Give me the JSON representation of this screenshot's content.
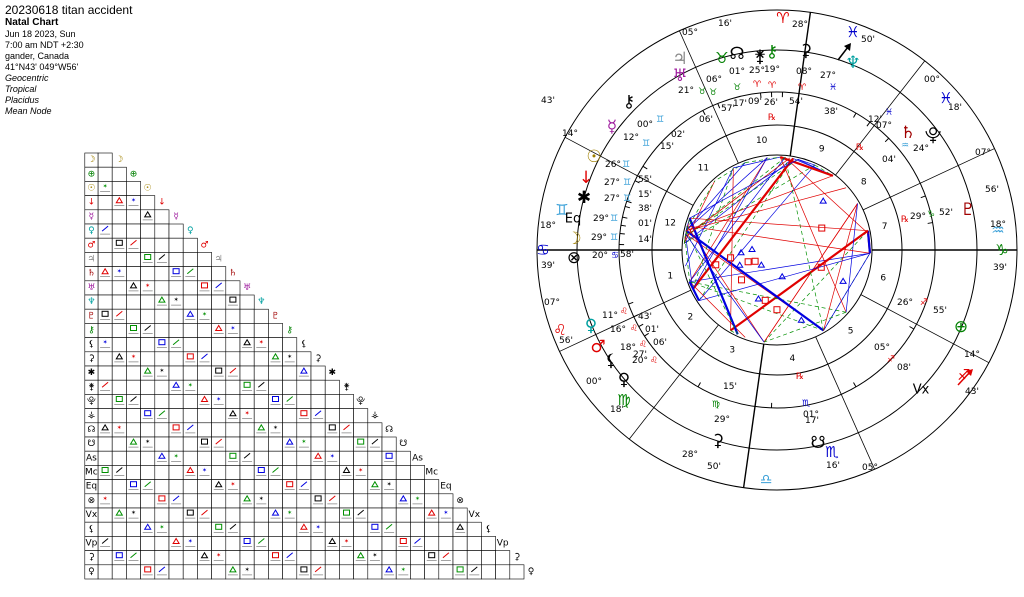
{
  "header": {
    "title": "20230618 titan accident",
    "chart_type": "Natal Chart",
    "lines": [
      "Jun 18 2023, Sun",
      "7:00 am  NDT +2:30",
      "gander, Canada",
      "41°N43' 049°W56'"
    ],
    "settings": [
      "Geocentric",
      "Tropical",
      "Placidus",
      "Mean Node"
    ]
  },
  "colors": {
    "fire": "#e00000",
    "earth": "#008000",
    "air": "#3aa0d8",
    "water": "#0000cc",
    "aspect_red": "#e00000",
    "aspect_blue": "#0000e0",
    "aspect_green": "#009000"
  },
  "signs": [
    {
      "glyph": "♋",
      "color": "#0000cc"
    },
    {
      "glyph": "♊",
      "color": "#3aa0d8"
    },
    {
      "glyph": "♉",
      "color": "#008000"
    },
    {
      "glyph": "♈",
      "color": "#e00000"
    },
    {
      "glyph": "♓",
      "color": "#0000cc"
    },
    {
      "glyph": "♒",
      "color": "#3aa0d8"
    },
    {
      "glyph": "♑",
      "color": "#008000"
    },
    {
      "glyph": "♐",
      "color": "#e00000"
    },
    {
      "glyph": "♏",
      "color": "#0000cc"
    },
    {
      "glyph": "♎",
      "color": "#3aa0d8"
    },
    {
      "glyph": "♍",
      "color": "#008000"
    },
    {
      "glyph": "♌",
      "color": "#e00000"
    }
  ],
  "cusp_labels": [
    {
      "deg": "18°",
      "min": "39'",
      "color": "#0000cc"
    },
    {
      "deg": "14°",
      "min": "43'",
      "color": "#3aa0d8"
    },
    {
      "deg": "05°",
      "min": "16'",
      "color": "#008000"
    },
    {
      "deg": "28°",
      "min": "50'",
      "color": "#0000cc"
    },
    {
      "deg": "00°",
      "min": "18'",
      "color": "#0000cc"
    },
    {
      "deg": "07°",
      "min": "56'",
      "color": "#3aa0d8"
    },
    {
      "deg": "18°",
      "min": "39'",
      "color": "#008000"
    },
    {
      "deg": "14°",
      "min": "43'",
      "color": "#e00000"
    },
    {
      "deg": "05°",
      "min": "16'",
      "color": "#0000cc"
    },
    {
      "deg": "28°",
      "min": "50'",
      "color": "#008000"
    },
    {
      "deg": "00°",
      "min": "18'",
      "color": "#008000"
    },
    {
      "deg": "07°",
      "min": "56'",
      "color": "#e00000"
    }
  ],
  "house_numbers": [
    "1",
    "2",
    "3",
    "4",
    "5",
    "6",
    "7",
    "8",
    "9",
    "10",
    "11",
    "12"
  ],
  "planets": [
    {
      "name": "sun",
      "glyph": "☉",
      "color": "#a08000",
      "deg": "26°",
      "sign": "♊",
      "min": "55'"
    },
    {
      "name": "mars-node",
      "glyph": "↓",
      "color": "#e00000",
      "deg": "27°",
      "sign": "♊",
      "min": "15'"
    },
    {
      "name": "asteroid",
      "glyph": "✱",
      "color": "#000000",
      "deg": "27°",
      "sign": "♊",
      "min": "38'"
    },
    {
      "name": "equal-asc",
      "glyph": "Eq",
      "color": "#000000",
      "deg": "29°",
      "sign": "♊",
      "min": "01'"
    },
    {
      "name": "moon",
      "glyph": "☽",
      "color": "#a08000",
      "deg": "29°",
      "sign": "♊",
      "min": "14'"
    },
    {
      "name": "part-fortune-south",
      "glyph": "⊗",
      "color": "#000000",
      "deg": "20°",
      "sign": "♋",
      "min": "58'"
    },
    {
      "name": "venus",
      "glyph": "♀",
      "color": "#00a0a0",
      "deg": "11°",
      "sign": "♌",
      "min": "43'"
    },
    {
      "name": "mars",
      "glyph": "♂",
      "color": "#e00000",
      "deg": "16°",
      "sign": "♌",
      "min": "01'"
    },
    {
      "name": "lilith",
      "glyph": "⚸",
      "color": "#000000",
      "deg": "18°",
      "sign": "♌",
      "min": "06'"
    },
    {
      "name": "vesta-lower",
      "glyph": "♀",
      "color": "#000000",
      "deg": "20°",
      "sign": "♌",
      "min": "27'"
    },
    {
      "name": "mercury",
      "glyph": "☿",
      "color": "#a020a0",
      "deg": "12°",
      "sign": "♊",
      "min": "15'"
    },
    {
      "name": "chiron-lower",
      "glyph": "⚷",
      "color": "#000000",
      "deg": "00°",
      "sign": "♊",
      "min": "02'"
    },
    {
      "name": "jupiter",
      "glyph": "♃",
      "color": "#888888",
      "deg": "06°",
      "sign": "♉",
      "min": "57'"
    },
    {
      "name": "uranus",
      "glyph": "♅",
      "color": "#a020a0",
      "deg": "21°",
      "sign": "♉",
      "min": "06'"
    },
    {
      "name": "node",
      "glyph": "☊",
      "color": "#000000",
      "deg": "01°",
      "sign": "♉",
      "min": "17'"
    },
    {
      "name": "juno",
      "glyph": "⚵",
      "color": "#000000",
      "deg": "25°",
      "sign": "♈",
      "min": "09'"
    },
    {
      "name": "chiron",
      "glyph": "⚷",
      "color": "#008000",
      "deg": "19°",
      "sign": "♈",
      "min": "26'"
    },
    {
      "name": "ceres",
      "glyph": "⚳",
      "color": "#000000",
      "deg": "08°",
      "sign": "♈",
      "min": "54'"
    },
    {
      "name": "vertex",
      "glyph": "Vx",
      "color": "#000000",
      "deg": "05°",
      "sign": "♐",
      "min": "08'"
    },
    {
      "name": "neptune",
      "glyph": "♆",
      "color": "#00a0a0",
      "deg": "27°",
      "sign": "♓",
      "min": "38'"
    },
    {
      "name": "saturn",
      "glyph": "♄",
      "color": "#a00000",
      "deg": "07°",
      "sign": "♓",
      "min": "12'"
    },
    {
      "name": "pluto",
      "glyph": "♇",
      "color": "#a00000",
      "deg": "29°",
      "sign": "♑",
      "min": "52'"
    },
    {
      "name": "pholus",
      "glyph": "⯓",
      "color": "#000000",
      "deg": "24°",
      "sign": "♒",
      "min": "04'"
    },
    {
      "name": "part-fortune",
      "glyph": "⊕",
      "color": "#008000",
      "deg": "26°",
      "sign": "♐",
      "min": "55'"
    },
    {
      "name": "south-node",
      "glyph": "☋",
      "color": "#000000",
      "deg": "01°",
      "sign": "♏",
      "min": "17'"
    },
    {
      "name": "hidalgo",
      "glyph": "⚳",
      "color": "#000000",
      "deg": "29°",
      "sign": "♍",
      "min": "15'"
    }
  ],
  "grid_glyphs": [
    {
      "glyph": "☽",
      "color": "#a08000"
    },
    {
      "glyph": "⊕",
      "color": "#008000"
    },
    {
      "glyph": "☉",
      "color": "#a08000"
    },
    {
      "glyph": "↓",
      "color": "#e00000"
    },
    {
      "glyph": "☿",
      "color": "#a020a0"
    },
    {
      "glyph": "♀",
      "color": "#00a0a0"
    },
    {
      "glyph": "♂",
      "color": "#e00000"
    },
    {
      "glyph": "♃",
      "color": "#888888"
    },
    {
      "glyph": "♄",
      "color": "#a00000"
    },
    {
      "glyph": "♅",
      "color": "#a020a0"
    },
    {
      "glyph": "♆",
      "color": "#00a0a0"
    },
    {
      "glyph": "♇",
      "color": "#a00000"
    },
    {
      "glyph": "⚷",
      "color": "#008000"
    },
    {
      "glyph": "⚸",
      "color": "#000000"
    },
    {
      "glyph": "⚳",
      "color": "#000000"
    },
    {
      "glyph": "✱",
      "color": "#000000"
    },
    {
      "glyph": "⚵",
      "color": "#000000"
    },
    {
      "glyph": "⯓",
      "color": "#000000"
    },
    {
      "glyph": "⚶",
      "color": "#000000"
    },
    {
      "glyph": "☊",
      "color": "#000000"
    },
    {
      "glyph": "☋",
      "color": "#000000"
    },
    {
      "glyph": "As",
      "color": "#000000"
    },
    {
      "glyph": "Mc",
      "color": "#000000"
    },
    {
      "glyph": "Eq",
      "color": "#000000"
    },
    {
      "glyph": "⊗",
      "color": "#000000"
    },
    {
      "glyph": "Vx",
      "color": "#000000"
    },
    {
      "glyph": "⚸",
      "color": "#000000"
    },
    {
      "glyph": "Vp",
      "color": "#000000"
    },
    {
      "glyph": "⚳",
      "color": "#000000"
    },
    {
      "glyph": "♀",
      "color": "#000000"
    }
  ]
}
